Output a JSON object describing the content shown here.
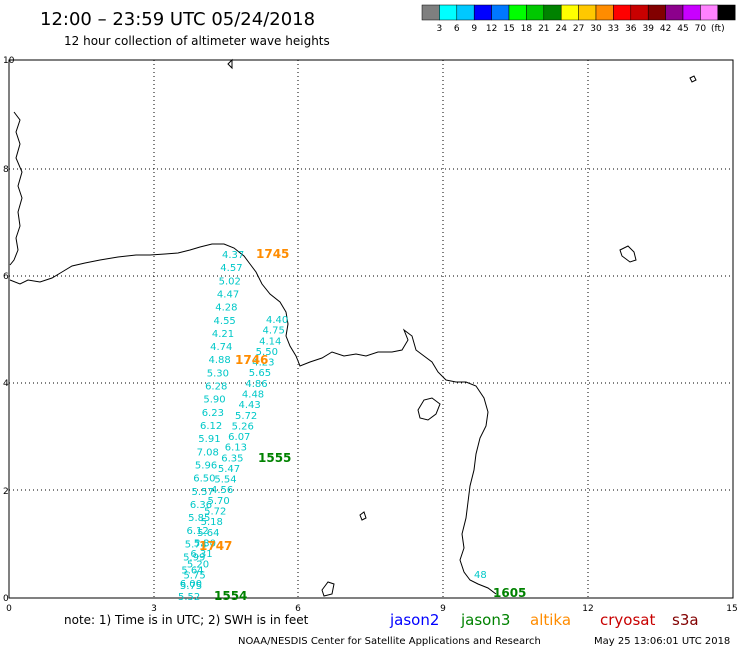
{
  "header": {
    "title": "12:00 – 23:59 UTC 05/24/2018",
    "subtitle": "12 hour collection of altimeter wave heights"
  },
  "legend": {
    "colors": [
      "#7f7f7f",
      "#00ffff",
      "#00c8ff",
      "#0000ff",
      "#0078ff",
      "#00ff00",
      "#00c800",
      "#008200",
      "#ffff00",
      "#ffc800",
      "#ff8c00",
      "#ff0000",
      "#c80000",
      "#820000",
      "#8c008c",
      "#c800ff",
      "#ff82ff",
      "#000000"
    ],
    "labels": [
      "3",
      "6",
      "9",
      "12",
      "15",
      "18",
      "21",
      "24",
      "27",
      "30",
      "33",
      "36",
      "39",
      "42",
      "45",
      "70",
      "(ft)"
    ]
  },
  "axes": {
    "x_ticks": [
      "0",
      "3",
      "6",
      "9",
      "12",
      "15"
    ],
    "y_ticks": [
      "0",
      "2",
      "4",
      "6",
      "8",
      "10"
    ]
  },
  "tracks": [
    {
      "satellite": "jason3",
      "time": "1554",
      "color": "#008200"
    },
    {
      "satellite": "jason3",
      "time": "1555",
      "color": "#008200"
    },
    {
      "satellite": "jason3",
      "time": "1605",
      "color": "#008200"
    },
    {
      "satellite": "altika",
      "time": "1745",
      "color": "#ff8c00"
    },
    {
      "satellite": "altika",
      "time": "1746",
      "color": "#ff8c00"
    },
    {
      "satellite": "altika",
      "time": "1747",
      "color": "#ff8c00"
    }
  ],
  "wave_labels": {
    "color": "#00c8c8",
    "track_a": [
      "4.37",
      "4.57",
      "5.02",
      "4.47",
      "4.28",
      "4.55",
      "4.21",
      "4.74",
      "4.88",
      "5.30",
      "6.28",
      "5.90",
      "6.23",
      "6.12",
      "5.91",
      "7.08",
      "5.96",
      "6.50",
      "5.57",
      "6.36",
      "5.85",
      "6.12",
      "5.74",
      "5.99",
      "5.64",
      "6.00",
      "5.52"
    ],
    "track_b": [
      "4.40",
      "4.75",
      "4.14",
      "5.50",
      "4.23",
      "5.65",
      "4.86",
      "4.48",
      "4.43",
      "5.72",
      "5.26",
      "6.07",
      "6.13",
      "6.35",
      "5.47",
      "5.54",
      "4.56",
      "5.70",
      "5.72",
      "5.18",
      "5.64",
      "5.30",
      "6.31",
      "5.20",
      "5.75",
      "5.75"
    ],
    "track_c": [
      "48"
    ]
  },
  "footer": {
    "note": "note:  1) Time is in UTC;  2) SWH is in feet",
    "satellites": [
      {
        "name": "jason2",
        "color": "#0000ff"
      },
      {
        "name": "jason3",
        "color": "#008200"
      },
      {
        "name": "altika",
        "color": "#ff8c00"
      },
      {
        "name": "cryosat",
        "color": "#c80000"
      },
      {
        "name": "s3a",
        "color": "#820000"
      }
    ],
    "credit": "NOAA/NESDIS Center for Satellite Applications and Research",
    "timestamp": "May 25 13:06:01 UTC 2018"
  }
}
